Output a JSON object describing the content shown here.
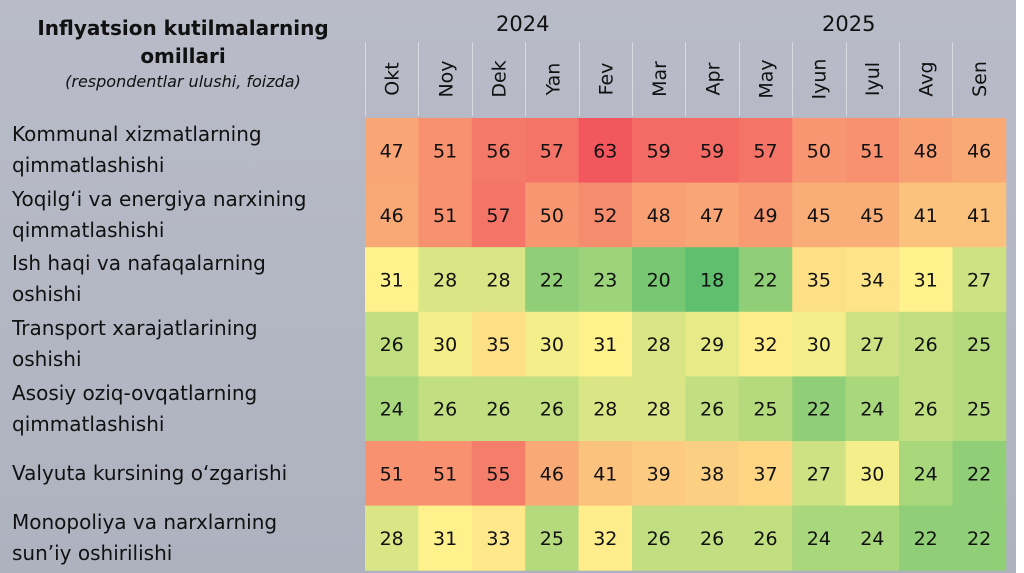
{
  "chart_data": {
    "type": "heatmap",
    "title": "Inflyatsion kutilmalarning omillari",
    "subtitle": "(respondentlar ulushi, foizda)",
    "years": [
      {
        "label": "2024"
      },
      {
        "label": "2025"
      }
    ],
    "months": [
      "Okt",
      "Noy",
      "Dek",
      "Yan",
      "Fev",
      "Mar",
      "Apr",
      "May",
      "Iyun",
      "Iyul",
      "Avg",
      "Sen"
    ],
    "rows": [
      {
        "label_line1": "Kommunal xizmatlarning",
        "label_line2": "qimmatlashishi",
        "values": [
          47,
          51,
          56,
          57,
          63,
          59,
          59,
          57,
          50,
          51,
          48,
          46
        ]
      },
      {
        "label_line1": "Yoqilg‘i va energiya narxining",
        "label_line2": "qimmatlashishi",
        "values": [
          46,
          51,
          57,
          50,
          52,
          48,
          47,
          49,
          45,
          45,
          41,
          41
        ]
      },
      {
        "label_line1": "Ish haqi va nafaqalarning",
        "label_line2": "oshishi",
        "values": [
          31,
          28,
          28,
          22,
          23,
          20,
          18,
          22,
          35,
          34,
          31,
          27
        ]
      },
      {
        "label_line1": "Transport xarajatlarining",
        "label_line2": "oshishi",
        "values": [
          26,
          30,
          35,
          30,
          31,
          28,
          29,
          32,
          30,
          27,
          26,
          25
        ]
      },
      {
        "label_line1": "Asosiy oziq-ovqatlarning",
        "label_line2": "qimmatlashishi",
        "values": [
          24,
          26,
          26,
          26,
          28,
          28,
          26,
          25,
          22,
          24,
          26,
          25
        ]
      },
      {
        "label_line1": "Valyuta kursining o‘zgarishi",
        "label_line2": "",
        "values": [
          51,
          51,
          55,
          46,
          41,
          39,
          38,
          37,
          27,
          30,
          24,
          22
        ]
      },
      {
        "label_line1": "Monopoliya va narxlarning",
        "label_line2": "sun’iy oshirilishi",
        "values": [
          28,
          31,
          33,
          25,
          32,
          26,
          26,
          26,
          24,
          24,
          22,
          22
        ]
      }
    ],
    "color_scale": {
      "low": "#5fbf6e",
      "mid": "#fff28c",
      "high": "#f2575e"
    }
  }
}
